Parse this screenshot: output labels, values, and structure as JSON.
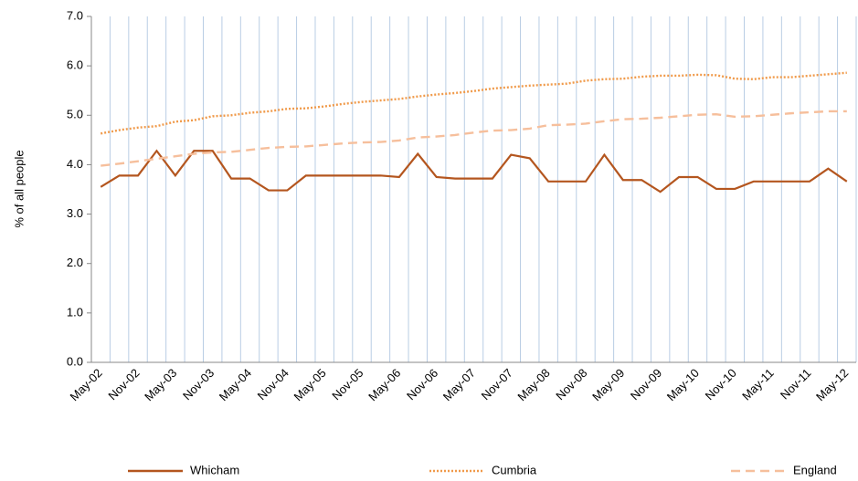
{
  "chart_data": {
    "type": "line",
    "ylabel": "% of all people",
    "categories": [
      "May-02",
      null,
      "Nov-02",
      null,
      "May-03",
      null,
      "Nov-03",
      null,
      "May-04",
      null,
      "Nov-04",
      null,
      "May-05",
      null,
      "Nov-05",
      null,
      "May-06",
      null,
      "Nov-06",
      null,
      "May-07",
      null,
      "Nov-07",
      null,
      "May-08",
      null,
      "Nov-08",
      null,
      "May-09",
      null,
      "Nov-09",
      null,
      "May-10",
      null,
      "Nov-10",
      null,
      "May-11",
      null,
      "Nov-11",
      null,
      "May-12"
    ],
    "series": [
      {
        "name": "Whicham",
        "color": "#b4561f",
        "dash": "solid",
        "values": [
          3.55,
          3.78,
          3.78,
          4.28,
          3.78,
          4.28,
          4.28,
          3.72,
          3.72,
          3.48,
          3.48,
          3.78,
          3.78,
          3.78,
          3.78,
          3.78,
          3.75,
          4.22,
          3.75,
          3.72,
          3.72,
          3.72,
          4.2,
          4.13,
          3.66,
          3.66,
          3.66,
          4.2,
          3.69,
          3.69,
          3.45,
          3.75,
          3.75,
          3.51,
          3.51,
          3.66,
          3.66,
          3.66,
          3.66,
          3.92,
          3.66
        ]
      },
      {
        "name": "Cumbria",
        "color": "#f09a4a",
        "dash": "dotted",
        "values": [
          4.63,
          4.7,
          4.75,
          4.78,
          4.87,
          4.9,
          4.98,
          5.0,
          5.05,
          5.08,
          5.13,
          5.14,
          5.18,
          5.23,
          5.27,
          5.3,
          5.33,
          5.38,
          5.42,
          5.45,
          5.49,
          5.54,
          5.57,
          5.6,
          5.62,
          5.64,
          5.7,
          5.73,
          5.74,
          5.78,
          5.8,
          5.8,
          5.82,
          5.81,
          5.74,
          5.73,
          5.77,
          5.77,
          5.8,
          5.83,
          5.86
        ]
      },
      {
        "name": "England",
        "color": "#f6bf9c",
        "dash": "dashed",
        "values": [
          3.98,
          4.02,
          4.07,
          4.12,
          4.17,
          4.22,
          4.25,
          4.26,
          4.3,
          4.34,
          4.36,
          4.37,
          4.4,
          4.43,
          4.45,
          4.46,
          4.49,
          4.55,
          4.57,
          4.6,
          4.65,
          4.69,
          4.7,
          4.73,
          4.8,
          4.81,
          4.83,
          4.88,
          4.92,
          4.93,
          4.95,
          4.98,
          5.01,
          5.02,
          4.97,
          4.98,
          5.01,
          5.04,
          5.06,
          5.08,
          5.08
        ]
      }
    ],
    "ylim": [
      0,
      7
    ],
    "yticks": [
      {
        "value": 0,
        "label": "0.0"
      },
      {
        "value": 1,
        "label": "1.0"
      },
      {
        "value": 2,
        "label": "2.0"
      },
      {
        "value": 3,
        "label": "3.0"
      },
      {
        "value": 4,
        "label": "4.0"
      },
      {
        "value": 5,
        "label": "5.0"
      },
      {
        "value": 6,
        "label": "6.0"
      },
      {
        "value": 7,
        "label": "7.0"
      }
    ],
    "xgrid": true,
    "grid_color": "#b9cde4",
    "legend": "bottom"
  }
}
